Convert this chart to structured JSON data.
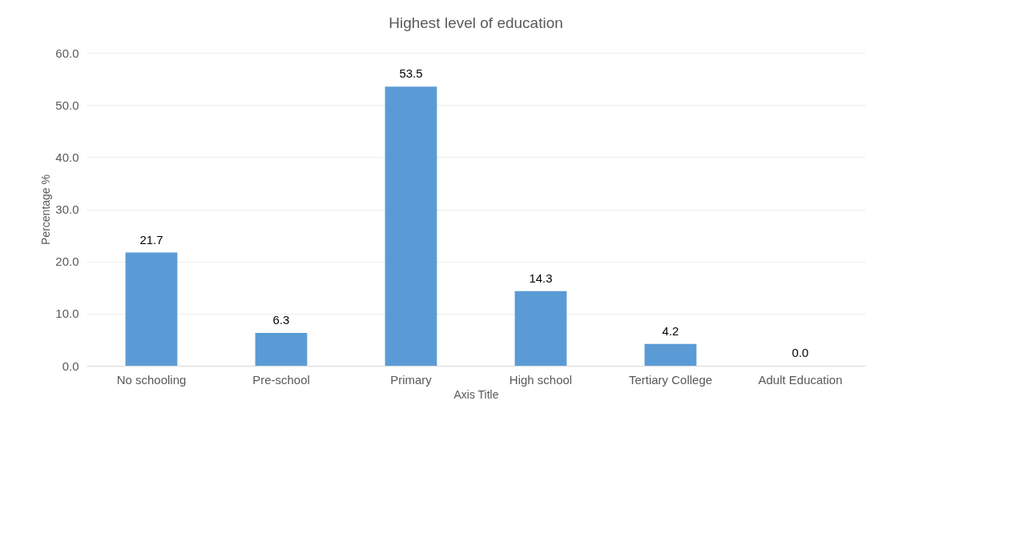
{
  "chart_data": {
    "type": "bar",
    "title": "Highest level of education",
    "xlabel": "Axis Title",
    "ylabel": "Percentage %",
    "categories": [
      "No schooling",
      "Pre-school",
      "Primary",
      "High school",
      "Tertiary College",
      "Adult Education"
    ],
    "values": [
      21.7,
      6.3,
      53.5,
      14.3,
      4.2,
      0.0
    ],
    "value_labels": [
      "21.7",
      "6.3",
      "53.5",
      "14.3",
      "4.2",
      "0.0"
    ],
    "color": "#5b9bd5",
    "ylim": [
      0,
      60
    ],
    "yticks": [
      {
        "value": 0,
        "label": "0.0"
      },
      {
        "value": 10,
        "label": "10.0"
      },
      {
        "value": 20,
        "label": "20.0"
      },
      {
        "value": 30,
        "label": "30.0"
      },
      {
        "value": 40,
        "label": "40.0"
      },
      {
        "value": 50,
        "label": "50.0"
      },
      {
        "value": 60,
        "label": "60.0"
      }
    ],
    "grid": "y"
  }
}
